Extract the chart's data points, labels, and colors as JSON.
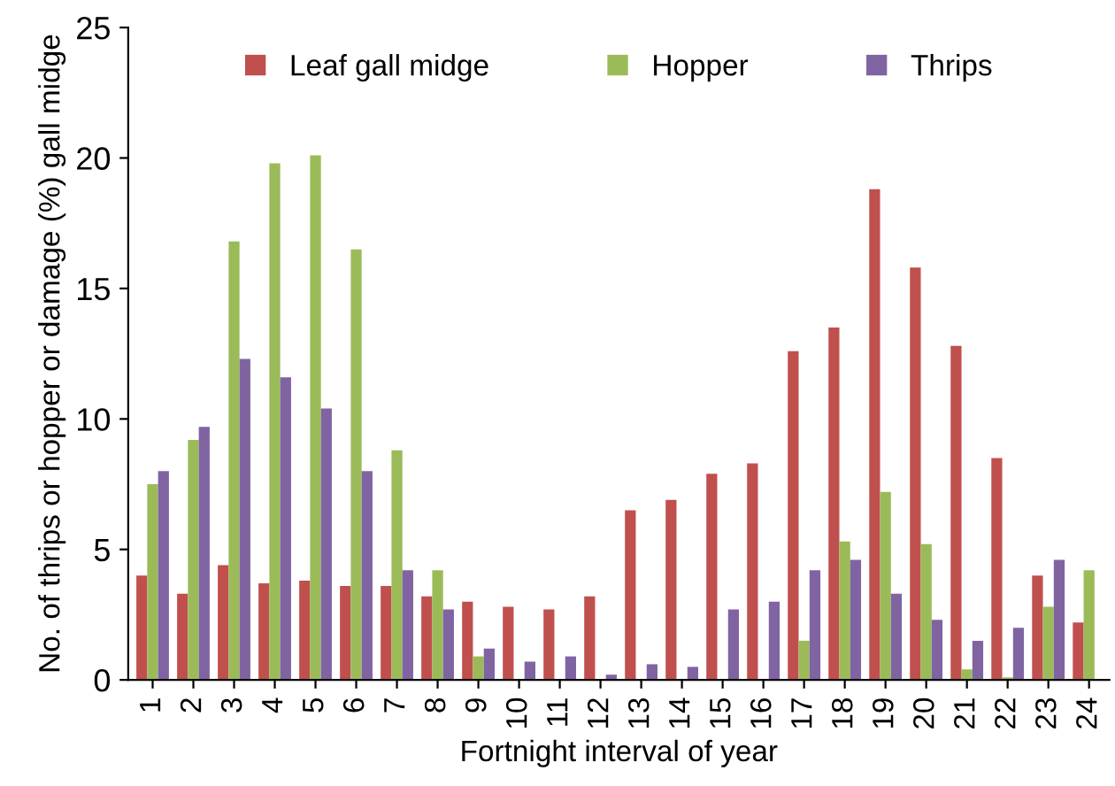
{
  "chart_data": {
    "type": "bar",
    "xlabel": "Fortnight interval of year",
    "ylabel": "No. of thrips or hopper or damage (%) gall midge",
    "categories": [
      "1",
      "2",
      "3",
      "4",
      "5",
      "6",
      "7",
      "8",
      "9",
      "10",
      "11",
      "12",
      "13",
      "14",
      "15",
      "16",
      "17",
      "18",
      "19",
      "20",
      "21",
      "22",
      "23",
      "24"
    ],
    "series": [
      {
        "name": "Leaf gall midge",
        "color": "#c0504d",
        "values": [
          4.0,
          3.3,
          4.4,
          3.7,
          3.8,
          3.6,
          3.6,
          3.2,
          3.0,
          2.8,
          2.7,
          3.2,
          6.5,
          6.9,
          7.9,
          8.3,
          12.6,
          13.5,
          18.8,
          15.8,
          12.8,
          8.5,
          4.0,
          2.2
        ]
      },
      {
        "name": "Hopper",
        "color": "#9bbb59",
        "values": [
          7.5,
          9.2,
          16.8,
          19.8,
          20.1,
          16.5,
          8.8,
          4.2,
          0.9,
          0,
          0,
          0,
          0,
          0,
          0,
          0,
          1.5,
          5.3,
          7.2,
          5.2,
          0.4,
          0.1,
          2.8,
          4.2
        ]
      },
      {
        "name": "Thrips",
        "color": "#8064a2",
        "values": [
          8.0,
          9.7,
          12.3,
          11.6,
          10.4,
          8.0,
          4.2,
          2.7,
          1.2,
          0.7,
          0.9,
          0.2,
          0.6,
          0.5,
          2.7,
          3.0,
          4.2,
          4.6,
          3.3,
          2.3,
          1.5,
          2.0,
          4.6,
          null
        ]
      }
    ],
    "ylim": [
      0,
      25
    ],
    "yticks": [
      0,
      5,
      10,
      15,
      20,
      25
    ],
    "legend": "top",
    "grid": false
  }
}
